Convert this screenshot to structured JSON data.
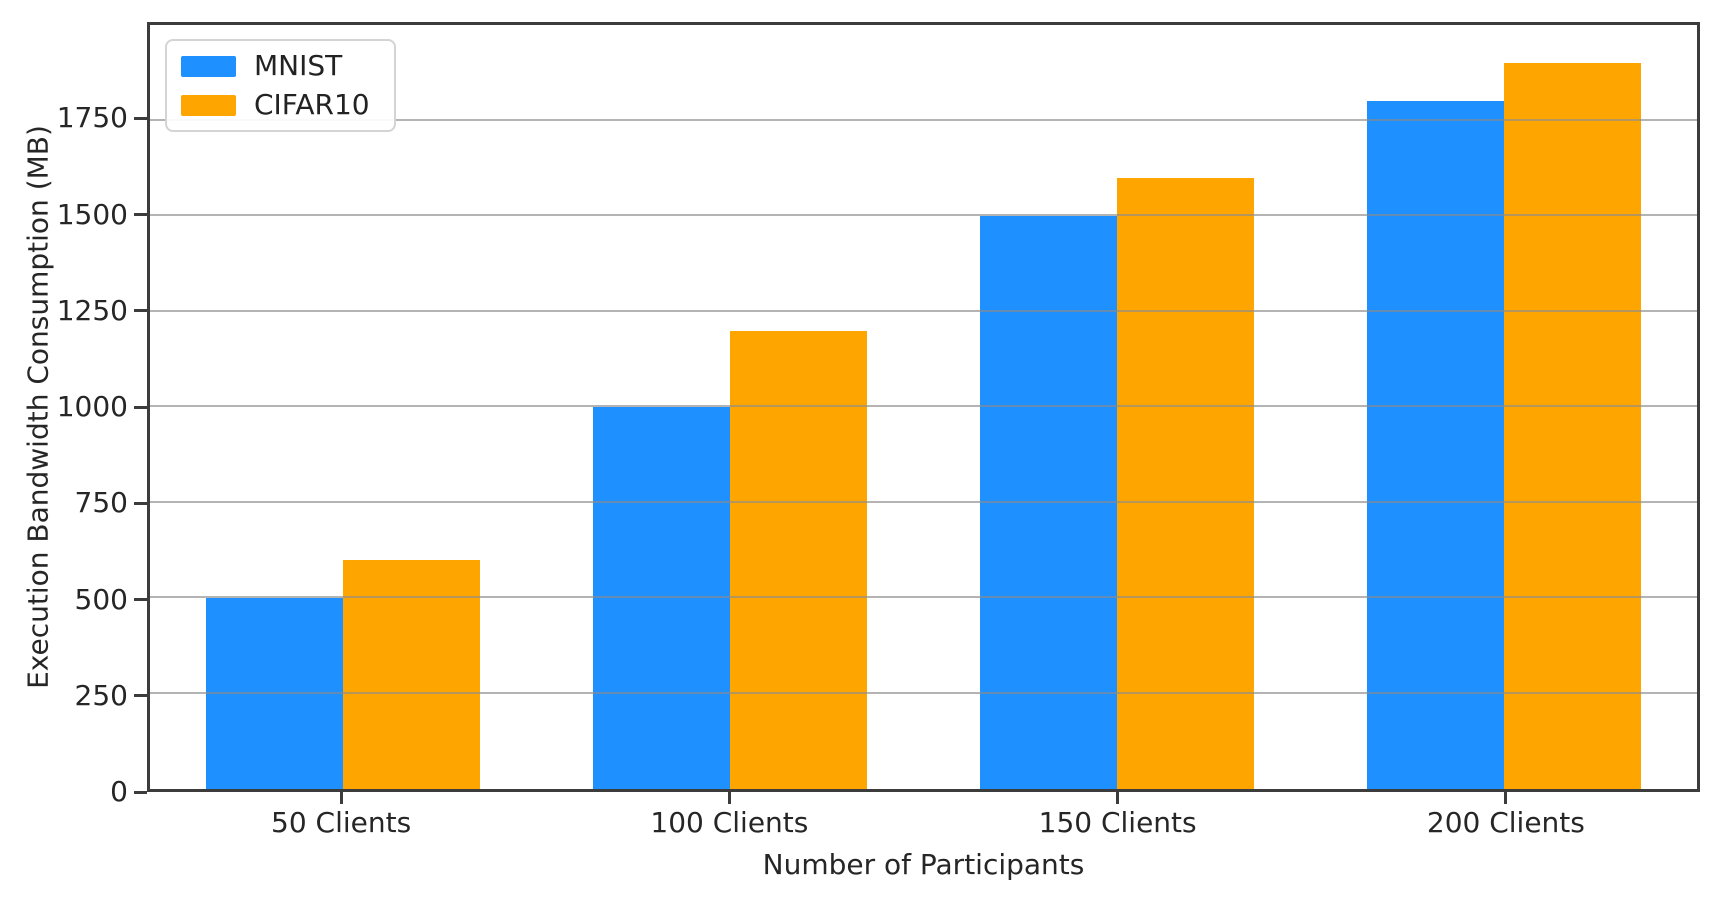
{
  "chart_data": {
    "type": "bar",
    "title": "",
    "xlabel": "Number of Participants",
    "ylabel": "Execution Bandwidth Consumption (MB)",
    "categories": [
      "50 Clients",
      "100 Clients",
      "150 Clients",
      "200 Clients"
    ],
    "series": [
      {
        "name": "MNIST",
        "color": "#1E90FF",
        "values": [
          500,
          1000,
          1500,
          1800
        ]
      },
      {
        "name": "CIFAR10",
        "color": "#FFA500",
        "values": [
          600,
          1200,
          1600,
          1900
        ]
      }
    ],
    "ylim": [
      0,
      2000
    ],
    "yticks": [
      0,
      250,
      500,
      750,
      1000,
      1250,
      1500,
      1750
    ],
    "grid": "horizontal, drawn above bars",
    "legend_position": "upper-left",
    "colors": {
      "gridline": "#8c8c8c",
      "spine": "#3c3c3c",
      "background": "#ffffff",
      "text": "#262626"
    }
  }
}
